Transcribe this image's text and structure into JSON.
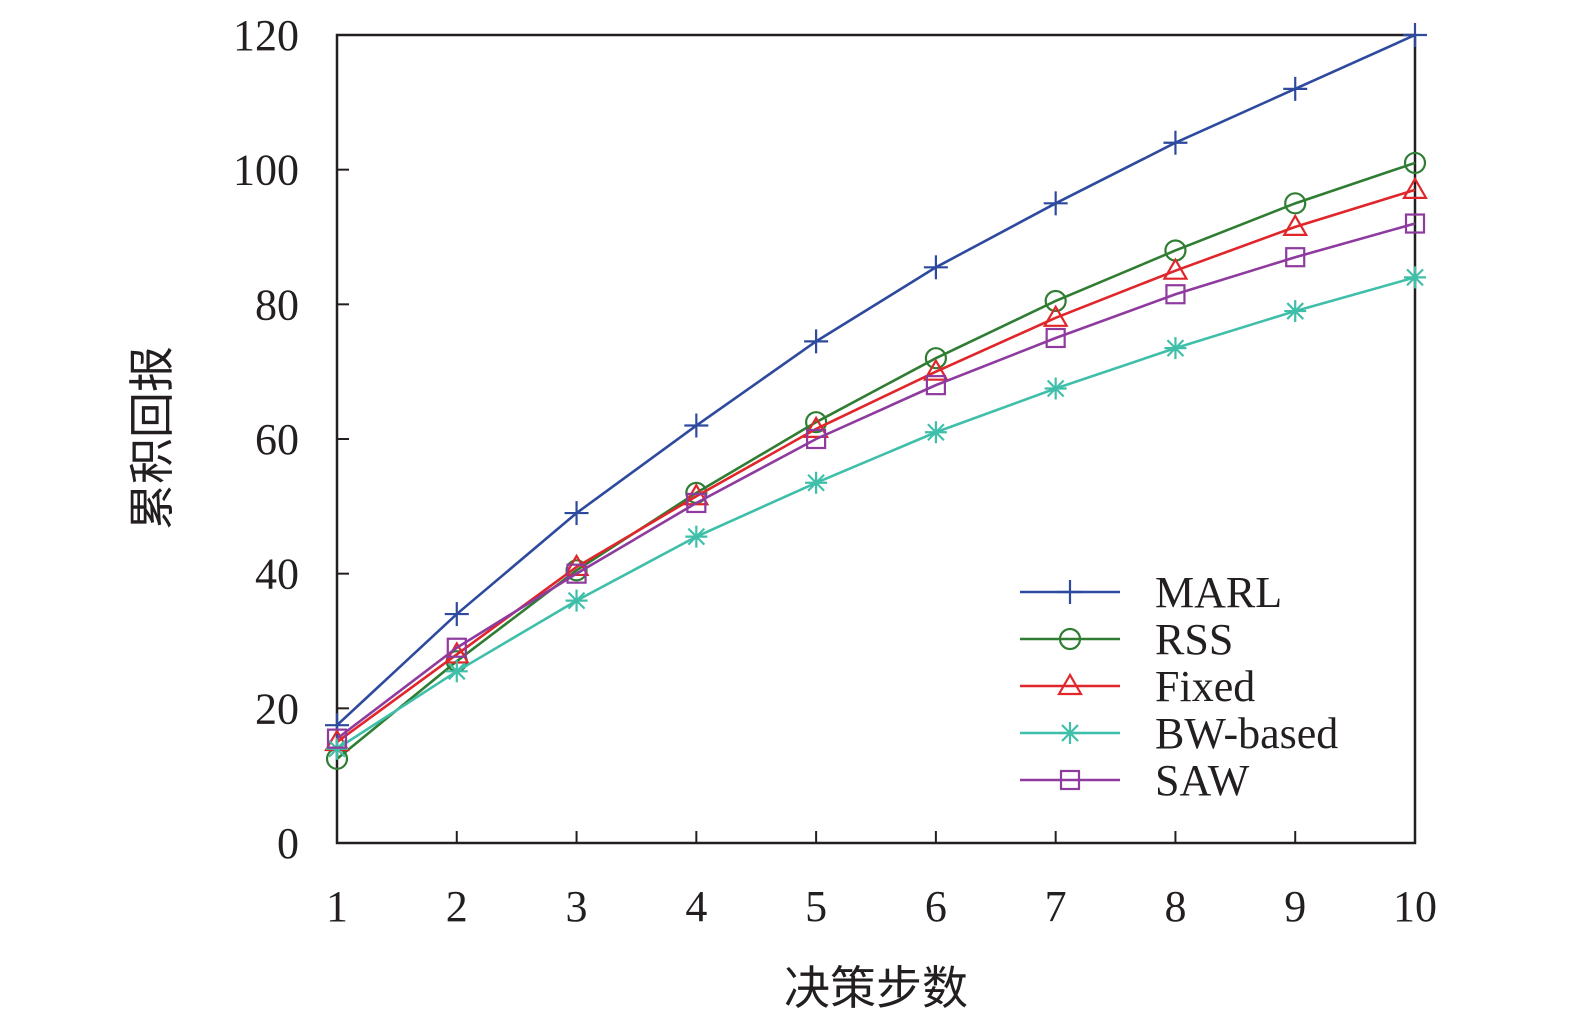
{
  "chart_data": {
    "type": "line",
    "xlabel": "决策步数",
    "ylabel": "累积回报",
    "x": [
      1,
      2,
      3,
      4,
      5,
      6,
      7,
      8,
      9,
      10
    ],
    "xticks": [
      "1",
      "2",
      "3",
      "4",
      "5",
      "6",
      "7",
      "8",
      "9",
      "10"
    ],
    "yticks": [
      "0",
      "20",
      "40",
      "60",
      "80",
      "100",
      "120"
    ],
    "xlim": [
      1,
      10
    ],
    "ylim": [
      0,
      120
    ],
    "grid": false,
    "legend_position": "bottom-right",
    "series": [
      {
        "name": "MARL",
        "color": "#2e4a9e",
        "marker": "plus",
        "values": [
          17.5,
          34,
          49,
          62,
          74.5,
          85.5,
          95,
          104,
          112,
          120
        ]
      },
      {
        "name": "RSS",
        "color": "#2f7d32",
        "marker": "circle",
        "values": [
          12.5,
          27,
          40.5,
          52,
          62.5,
          72,
          80.5,
          88,
          95,
          101
        ]
      },
      {
        "name": "Fixed",
        "color": "#e0262a",
        "marker": "triangle",
        "values": [
          15,
          28,
          41,
          51.5,
          61.5,
          70,
          78,
          85,
          91.5,
          97
        ]
      },
      {
        "name": "BW-based",
        "color": "#3fbfaa",
        "marker": "star",
        "values": [
          14,
          25.5,
          36,
          45.5,
          53.5,
          61,
          67.5,
          73.5,
          79,
          84
        ]
      },
      {
        "name": "SAW",
        "color": "#8e3a9e",
        "marker": "square",
        "values": [
          15.5,
          29,
          40,
          50.5,
          60,
          68,
          75,
          81.5,
          87,
          92
        ]
      }
    ]
  }
}
